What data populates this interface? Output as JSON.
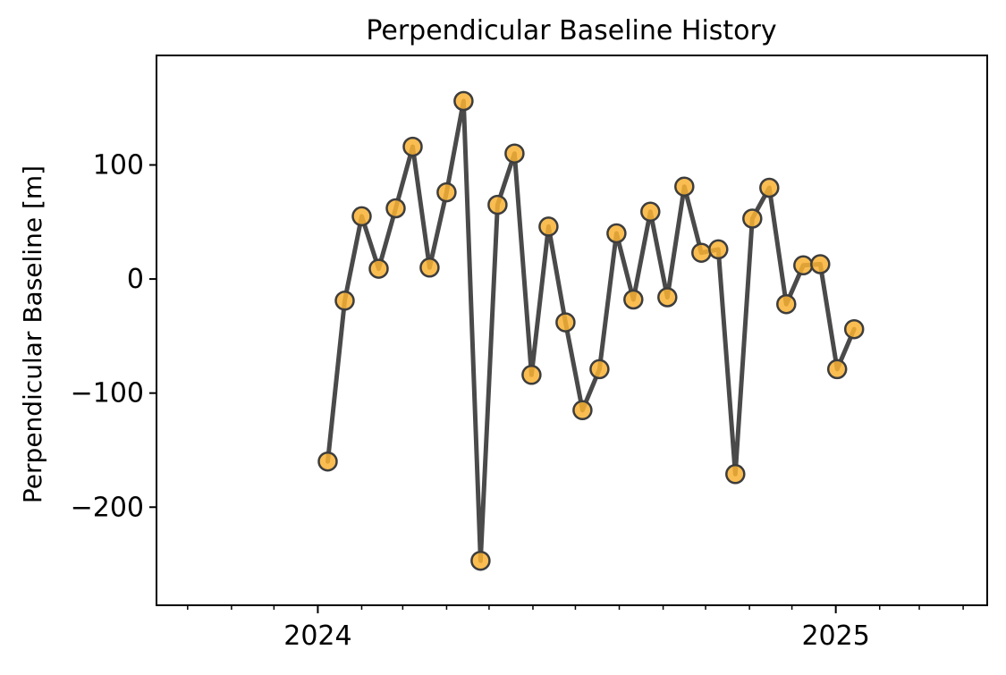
{
  "chart_data": {
    "type": "line",
    "title": "Perpendicular Baseline History",
    "xlabel": "",
    "ylabel": "Perpendicular Baseline [m]",
    "x_type": "date",
    "xlim": [
      "2023-09-09",
      "2025-04-18"
    ],
    "ylim": [
      -286,
      196
    ],
    "x_ticks": [
      {
        "date": "2024-01-01",
        "label": "2024"
      },
      {
        "date": "2025-01-01",
        "label": "2025"
      }
    ],
    "y_ticks": [
      {
        "value": 100,
        "label": "100"
      },
      {
        "value": 0,
        "label": "0"
      },
      {
        "value": -100,
        "label": "−100"
      },
      {
        "value": -200,
        "label": "−200"
      }
    ],
    "grid": false,
    "legend": false,
    "colors": {
      "line": "#4a4a4a",
      "marker_fill": "#f9b233",
      "marker_edge": "#3d3d3d"
    },
    "series": [
      {
        "points": [
          {
            "x": "2024-01-08",
            "y": -160
          },
          {
            "x": "2024-01-20",
            "y": -19
          },
          {
            "x": "2024-02-01",
            "y": 55
          },
          {
            "x": "2024-02-13",
            "y": 9
          },
          {
            "x": "2024-02-25",
            "y": 62
          },
          {
            "x": "2024-03-08",
            "y": 116
          },
          {
            "x": "2024-03-20",
            "y": 10
          },
          {
            "x": "2024-04-01",
            "y": 76
          },
          {
            "x": "2024-04-13",
            "y": 156
          },
          {
            "x": "2024-04-25",
            "y": -247
          },
          {
            "x": "2024-05-07",
            "y": 65
          },
          {
            "x": "2024-05-19",
            "y": 110
          },
          {
            "x": "2024-05-31",
            "y": -84
          },
          {
            "x": "2024-06-12",
            "y": 46
          },
          {
            "x": "2024-06-24",
            "y": -38
          },
          {
            "x": "2024-07-06",
            "y": -115
          },
          {
            "x": "2024-07-18",
            "y": -79
          },
          {
            "x": "2024-07-30",
            "y": 40
          },
          {
            "x": "2024-08-11",
            "y": -18
          },
          {
            "x": "2024-08-23",
            "y": 59
          },
          {
            "x": "2024-09-04",
            "y": -16
          },
          {
            "x": "2024-09-16",
            "y": 81
          },
          {
            "x": "2024-09-28",
            "y": 23
          },
          {
            "x": "2024-10-10",
            "y": 26
          },
          {
            "x": "2024-10-22",
            "y": -171
          },
          {
            "x": "2024-11-03",
            "y": 53
          },
          {
            "x": "2024-11-15",
            "y": 80
          },
          {
            "x": "2024-11-27",
            "y": -22
          },
          {
            "x": "2024-12-09",
            "y": 12
          },
          {
            "x": "2024-12-21",
            "y": 13
          },
          {
            "x": "2025-01-02",
            "y": -79
          },
          {
            "x": "2025-01-14",
            "y": -44
          }
        ]
      }
    ]
  }
}
